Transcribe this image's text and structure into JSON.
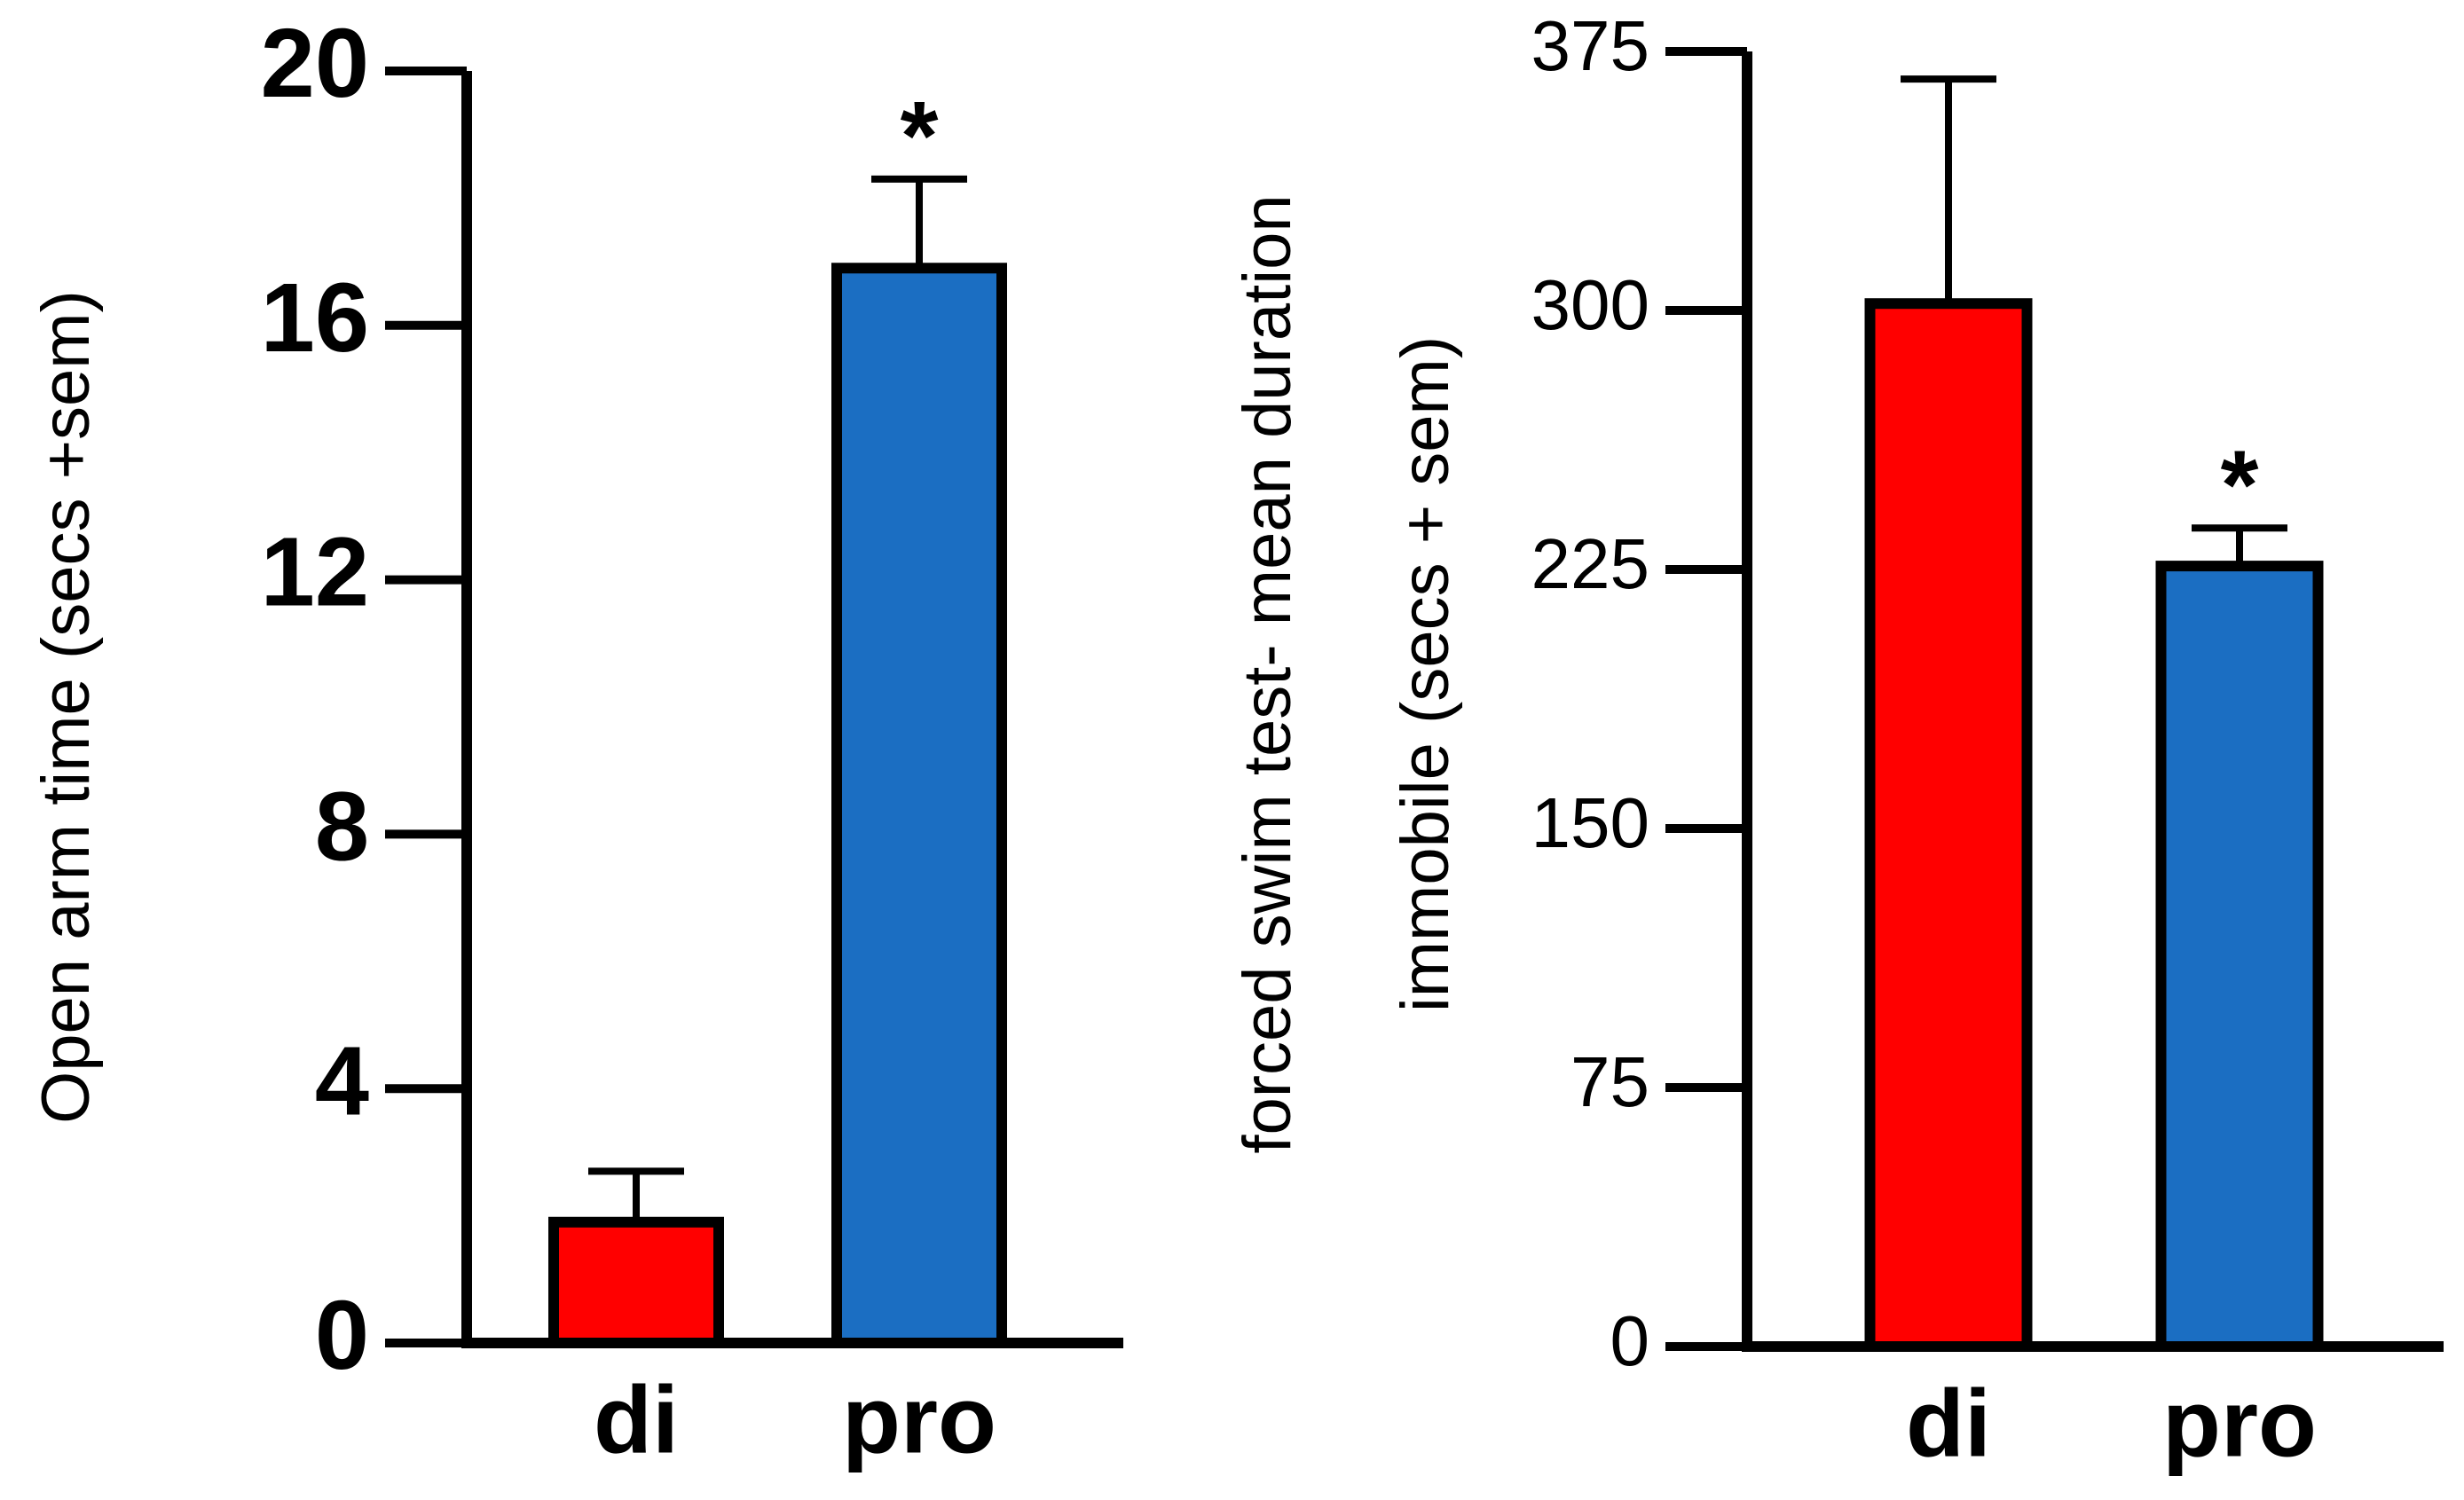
{
  "chart_data": [
    {
      "type": "bar",
      "ylabel": [
        "Open arm time (secs +sem)"
      ],
      "categories": [
        "di",
        "pro"
      ],
      "values": [
        1.9,
        16.9
      ],
      "errors": [
        0.8,
        1.4
      ],
      "colors": [
        "#ff0000",
        "#1b6ec2"
      ],
      "markers": [
        null,
        "*"
      ],
      "ylim": [
        0,
        20
      ],
      "yticks": [
        0,
        4,
        8,
        12,
        16,
        20
      ]
    },
    {
      "type": "bar",
      "ylabel": [
        "forced swim test- mean duration",
        "immobile (secs + sem)"
      ],
      "categories": [
        "di",
        "pro"
      ],
      "values": [
        302,
        226
      ],
      "errors": [
        65,
        11
      ],
      "colors": [
        "#ff0000",
        "#1b6ec2"
      ],
      "markers": [
        null,
        "*"
      ],
      "ylim": [
        0,
        375
      ],
      "yticks": [
        0,
        75,
        150,
        225,
        300,
        375
      ]
    }
  ]
}
